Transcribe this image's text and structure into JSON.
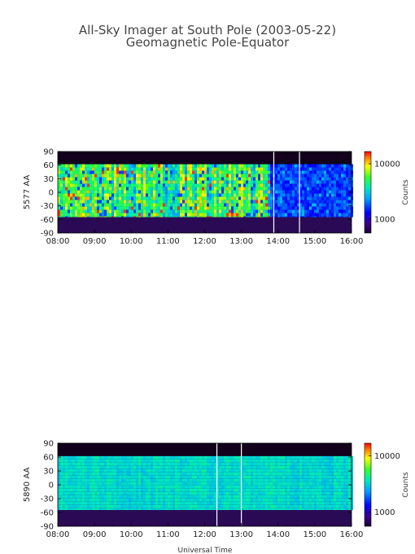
{
  "title": "All-Sky Imager at South Pole (2003-05-22)",
  "subtitle": "Geomagnetic Pole-Equator",
  "xlabel": "Universal Time",
  "chart_data": [
    {
      "type": "heatmap",
      "ylabel": "5577 AA",
      "x_ticks": [
        "08:00",
        "09:00",
        "10:00",
        "11:00",
        "12:00",
        "13:00",
        "14:00",
        "15:00",
        "16:00"
      ],
      "xlim": [
        "08:00",
        "16:00"
      ],
      "y_ticks": [
        "90",
        "60",
        "30",
        "0",
        "-30",
        "-60",
        "-90"
      ],
      "ylim": [
        -90,
        90
      ],
      "data_band": [
        -55,
        62
      ],
      "markers": [
        "13:53",
        "14:35"
      ],
      "colorbar": {
        "label": "Counts",
        "ticks": [
          "10000",
          "1000"
        ],
        "scale": "log"
      },
      "palette": "rainbow"
    },
    {
      "type": "heatmap",
      "ylabel": "5890 AA",
      "x_ticks": [
        "08:00",
        "09:00",
        "10:00",
        "11:00",
        "12:00",
        "13:00",
        "14:00",
        "15:00",
        "16:00"
      ],
      "xlim": [
        "08:00",
        "16:00"
      ],
      "y_ticks": [
        "90",
        "60",
        "30",
        "0",
        "-30",
        "-60",
        "-90"
      ],
      "ylim": [
        -90,
        90
      ],
      "data_band": [
        -55,
        62
      ],
      "markers": [
        "12:20",
        "13:00"
      ],
      "colorbar": {
        "label": "Counts",
        "ticks": [
          "10000",
          "1000"
        ],
        "scale": "log"
      },
      "palette": "rainbow"
    }
  ]
}
